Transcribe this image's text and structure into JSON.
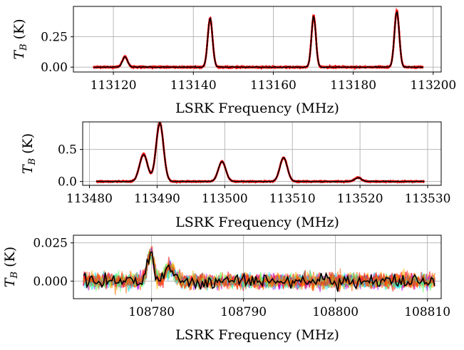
{
  "chart_data": [
    {
      "type": "line",
      "xlabel": "LSRK Frequency (MHz)",
      "ylabel": "T_B (K)",
      "xlim": [
        113110,
        113202
      ],
      "ylim": [
        -0.04,
        0.5
      ],
      "xticks": [
        113120,
        113140,
        113160,
        113180,
        113200
      ],
      "xtick_labels": [
        "113120",
        "113140",
        "113160",
        "113180",
        "113200"
      ],
      "yticks": [
        0.0,
        0.25
      ],
      "ytick_labels": [
        "0.00",
        "0.25"
      ],
      "grid": true,
      "x_range": [
        113115,
        113197.5
      ],
      "lines": [
        {
          "center": 113122.9,
          "height": 0.085,
          "width": 0.65
        },
        {
          "center": 113144.2,
          "height": 0.4,
          "width": 0.6
        },
        {
          "center": 113170.1,
          "height": 0.42,
          "width": 0.55
        },
        {
          "center": 113190.9,
          "height": 0.46,
          "width": 0.6
        }
      ],
      "noise": 0.004,
      "series_colors": [
        "#ff0000",
        "#000000"
      ]
    },
    {
      "type": "line",
      "xlabel": "LSRK Frequency (MHz)",
      "ylabel": "T_B (K)",
      "xlim": [
        113479,
        113532
      ],
      "ylim": [
        -0.06,
        0.93
      ],
      "xticks": [
        113480,
        113490,
        113500,
        113510,
        113520,
        113530
      ],
      "xtick_labels": [
        "113480",
        "113490",
        "113500",
        "113510",
        "113520",
        "113530"
      ],
      "yticks": [
        0.0,
        0.5
      ],
      "ytick_labels": [
        "0.0",
        "0.5"
      ],
      "grid": true,
      "x_range": [
        113481,
        113529.5
      ],
      "lines": [
        {
          "center": 113488.0,
          "height": 0.42,
          "width": 0.6
        },
        {
          "center": 113490.4,
          "height": 0.91,
          "width": 0.55
        },
        {
          "center": 113499.6,
          "height": 0.31,
          "width": 0.55
        },
        {
          "center": 113508.7,
          "height": 0.37,
          "width": 0.55
        },
        {
          "center": 113519.7,
          "height": 0.06,
          "width": 0.5
        }
      ],
      "noise": 0.006,
      "series_colors": [
        "#ff0000",
        "#000000"
      ]
    },
    {
      "type": "line",
      "xlabel": "LSRK Frequency (MHz)",
      "ylabel": "T_B (K)",
      "xlim": [
        108771.5,
        108811.5
      ],
      "ylim": [
        -0.0115,
        0.03
      ],
      "xticks": [
        108780,
        108790,
        108800,
        108810
      ],
      "xtick_labels": [
        "108780",
        "108790",
        "108800",
        "108810"
      ],
      "yticks": [
        0.0,
        0.025
      ],
      "ytick_labels": [
        "0.000",
        "0.025"
      ],
      "grid": true,
      "x_range": [
        108772.6,
        108810.8
      ],
      "lines": [
        {
          "center": 108779.9,
          "height": 0.018,
          "width": 0.35
        },
        {
          "center": 108782.0,
          "height": 0.009,
          "width": 0.5
        }
      ],
      "noise": 0.0024,
      "series_colors": [
        "#ff0000",
        "#ff6600",
        "#ffb000",
        "#b000ff",
        "#00e0ff",
        "#60ff60",
        "#000000"
      ]
    }
  ]
}
